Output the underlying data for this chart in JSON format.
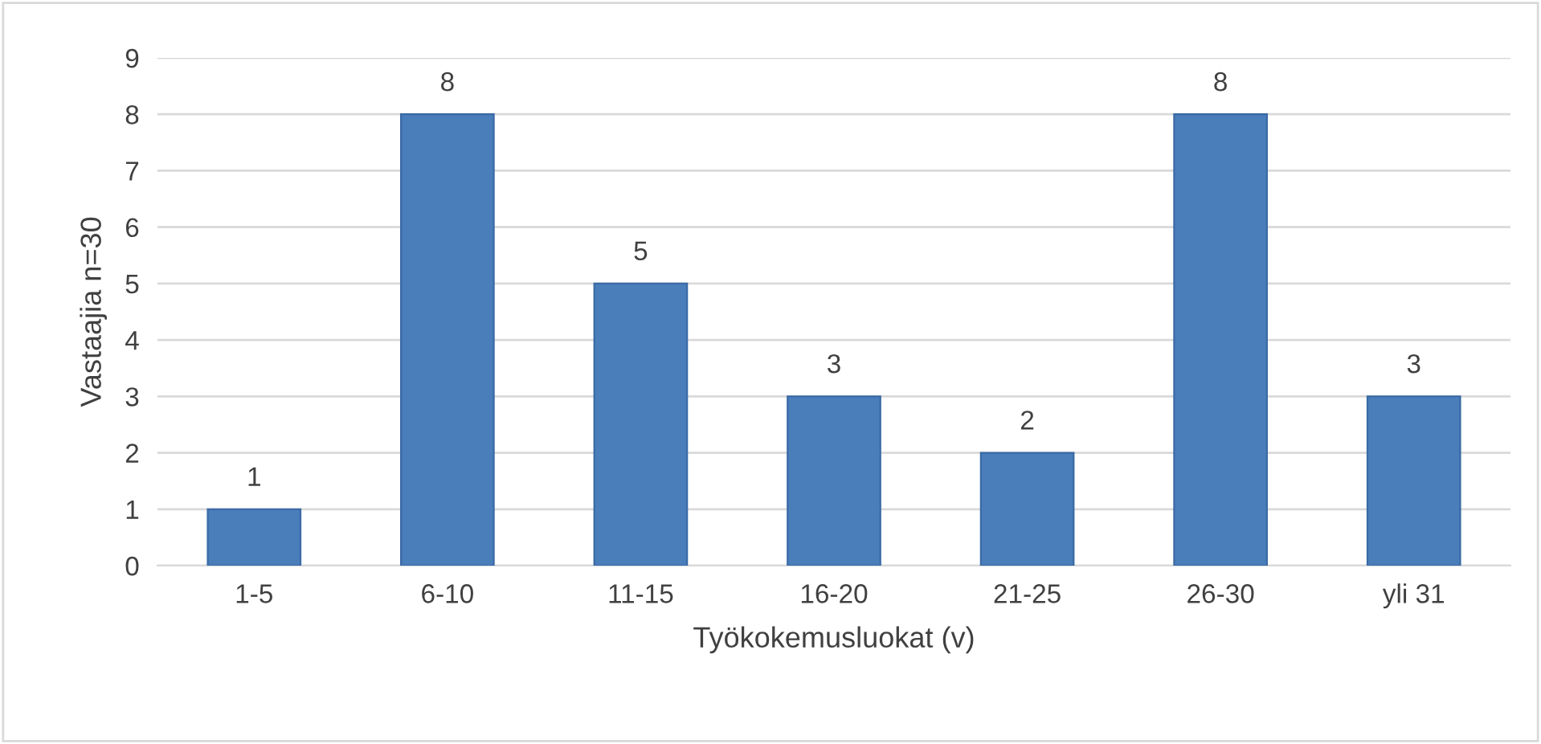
{
  "chart_data": {
    "type": "bar",
    "xlabel": "Työkokemusluokat (v)",
    "ylabel": "Vastaajia n=30",
    "categories": [
      "1-5",
      "6-10",
      "11-15",
      "16-20",
      "21-25",
      "26-30",
      "yli 31"
    ],
    "values": [
      1,
      8,
      5,
      3,
      2,
      8,
      3
    ],
    "color": "#4a7ebb",
    "ylim": [
      0,
      9
    ],
    "yticks": [
      0,
      1,
      2,
      3,
      4,
      5,
      6,
      7,
      8,
      9
    ],
    "grid": "y",
    "data_labels": true
  }
}
